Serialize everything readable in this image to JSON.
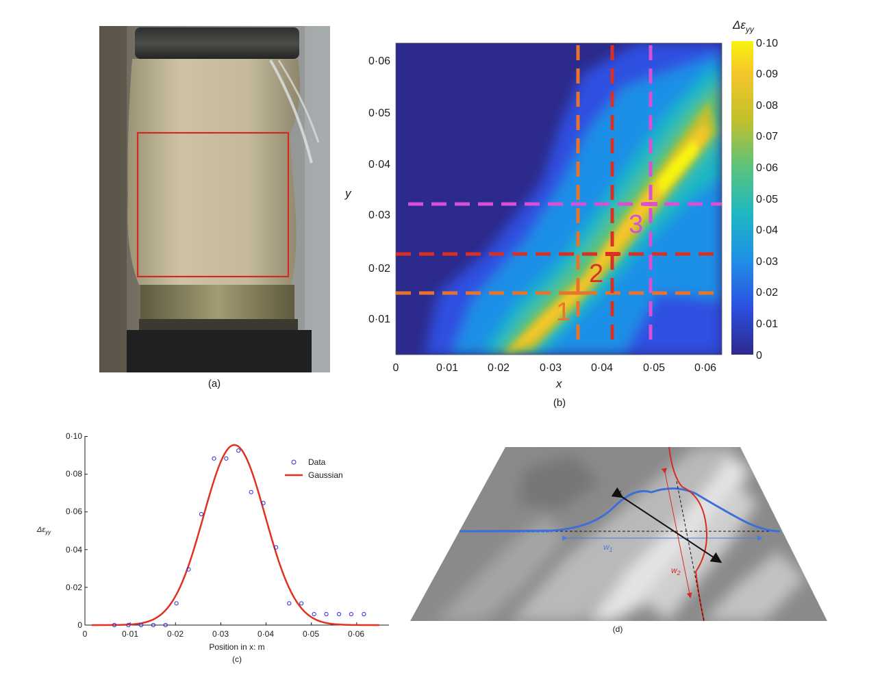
{
  "captions": {
    "a": "(a)",
    "b": "(b)",
    "c": "(c)",
    "d": "(d)"
  },
  "panel_b": {
    "xlabel": "x",
    "ylabel": "y",
    "colorbar_title": "Δε",
    "colorbar_title_sub": "yy",
    "xticks": [
      "0",
      "0·01",
      "0·02",
      "0·03",
      "0·04",
      "0·05",
      "0·06"
    ],
    "yticks": [
      "0·01",
      "0·02",
      "0·03",
      "0·04",
      "0·05",
      "0·06"
    ],
    "colorbar_ticks": [
      "0·10",
      "0·09",
      "0·08",
      "0·07",
      "0·06",
      "0·05",
      "0·04",
      "0·03",
      "0·02",
      "0·01",
      "0"
    ],
    "labels": [
      "1",
      "2",
      "3"
    ],
    "colors": {
      "line1": "#e8742c",
      "line2": "#d93025",
      "line3": "#d94fd6"
    }
  },
  "panel_d": {
    "label_w": "w",
    "label_w1": "w",
    "label_w1_sub": "1",
    "label_w2": "w",
    "label_w2_sub": "2"
  },
  "chart_data": {
    "type": "scatter",
    "xlabel": "Position in x: m",
    "ylabel": "Δε",
    "ylabel_sub": "yy",
    "xlim": [
      0,
      0.065
    ],
    "ylim": [
      0,
      0.1
    ],
    "xticks": [
      "0",
      "0·01",
      "0·02",
      "0·03",
      "0·04",
      "0·05",
      "0·06"
    ],
    "yticks": [
      "0",
      "0·02",
      "0·04",
      "0·06",
      "0·08",
      "0·10"
    ],
    "legend_position": "top-right",
    "series": [
      {
        "name": "Data",
        "color": "#2b2bd9",
        "x": [
          0.0065,
          0.0096,
          0.0124,
          0.0151,
          0.0178,
          0.0202,
          0.0229,
          0.0257,
          0.0285,
          0.0312,
          0.0339,
          0.0367,
          0.0394,
          0.0422,
          0.0451,
          0.0478,
          0.0506,
          0.0533,
          0.0561,
          0.0588,
          0.0616
        ],
        "y": [
          0,
          0,
          0,
          0,
          0,
          0.0115,
          0.0295,
          0.0588,
          0.0883,
          0.0883,
          0.0925,
          0.0705,
          0.0647,
          0.0412,
          0.0115,
          0.0115,
          0.0058,
          0.0058,
          0.0058,
          0.0058,
          0.0058
        ]
      },
      {
        "name": "Gaussian",
        "color": "#e0301e",
        "type": "line",
        "amplitude": 0.0955,
        "center": 0.033,
        "sigma": 0.0068
      }
    ]
  }
}
